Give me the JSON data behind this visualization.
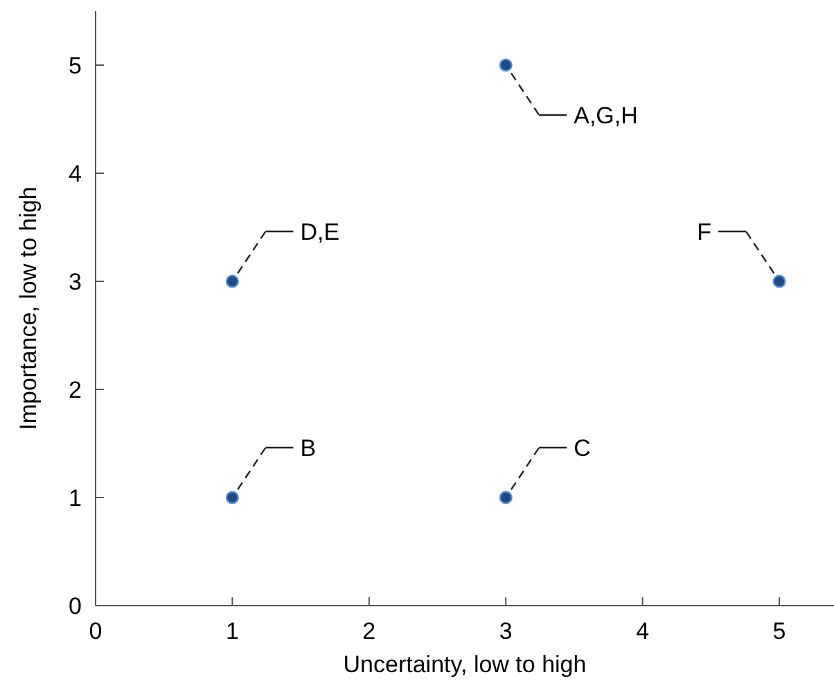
{
  "chart_data": {
    "type": "scatter",
    "xlabel": "Uncertainty, low to high",
    "ylabel": "Importance, low to high",
    "x": [
      1,
      1,
      3,
      3,
      5
    ],
    "values": [
      1,
      3,
      1,
      5,
      3
    ],
    "color": "#1f4a86",
    "marker": "circle",
    "grid": false,
    "legend": false,
    "xlim": [
      0,
      5.4
    ],
    "ylim": [
      0,
      5.5
    ],
    "xticks": [
      0,
      1,
      2,
      3,
      4,
      5
    ],
    "yticks": [
      0,
      1,
      2,
      3,
      4,
      5
    ],
    "annotations": [
      "B",
      "D,E",
      "C",
      "A,G,H",
      "F"
    ]
  }
}
